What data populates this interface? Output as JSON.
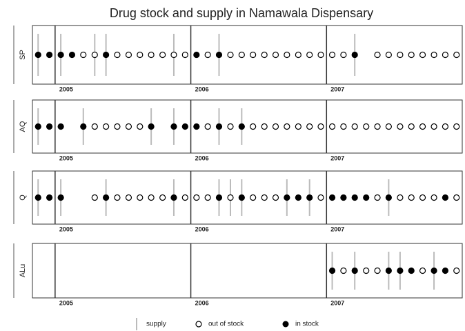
{
  "chart_data": {
    "type": "dot",
    "title": "Drug stock and supply in Namawala Dispensary",
    "xlim": [
      2004.833,
      2008
    ],
    "xticks": [
      2005,
      2006,
      2007
    ],
    "x": [
      2004.875,
      2004.958,
      2005.042,
      2005.125,
      2005.208,
      2005.292,
      2005.375,
      2005.458,
      2005.542,
      2005.625,
      2005.708,
      2005.792,
      2005.875,
      2005.958,
      2006.042,
      2006.125,
      2006.208,
      2006.292,
      2006.375,
      2006.458,
      2006.542,
      2006.625,
      2006.708,
      2006.792,
      2006.875,
      2006.958,
      2007.042,
      2007.125,
      2007.208,
      2007.292,
      2007.375,
      2007.458,
      2007.542,
      2007.625,
      2007.708,
      2007.792,
      2007.875,
      2007.958
    ],
    "legend": [
      "supply",
      "out of stock",
      "in stock"
    ],
    "series": [
      {
        "name": "SP",
        "values": [
          1,
          1,
          1,
          1,
          0,
          0,
          1,
          0,
          0,
          0,
          0,
          0,
          0,
          0,
          1,
          0,
          1,
          0,
          0,
          0,
          0,
          0,
          0,
          0,
          0,
          0,
          0,
          0,
          1,
          null,
          0,
          0,
          0,
          0,
          0,
          0,
          0,
          0
        ],
        "supply": [
          2004.875,
          2005.042,
          2005.292,
          2005.375,
          2005.875,
          2006.208,
          2007.208
        ]
      },
      {
        "name": "AQ",
        "values": [
          1,
          1,
          1,
          null,
          1,
          0,
          0,
          0,
          0,
          0,
          1,
          null,
          1,
          1,
          1,
          0,
          1,
          0,
          1,
          0,
          0,
          0,
          0,
          0,
          0,
          0,
          0,
          0,
          0,
          0,
          0,
          0,
          0,
          0,
          0,
          0,
          0,
          0
        ],
        "supply": [
          2004.875,
          2005.208,
          2005.708,
          2005.875,
          2006.208,
          2006.375
        ]
      },
      {
        "name": "Q",
        "values": [
          1,
          1,
          1,
          null,
          null,
          0,
          1,
          0,
          0,
          0,
          0,
          0,
          1,
          0,
          0,
          0,
          1,
          0,
          1,
          0,
          0,
          0,
          1,
          1,
          1,
          0,
          1,
          1,
          1,
          1,
          0,
          1,
          0,
          0,
          0,
          0,
          1,
          0
        ],
        "supply": [
          2004.875,
          2005.042,
          2005.375,
          2005.875,
          2006.208,
          2006.292,
          2006.375,
          2006.708,
          2006.875,
          2007.458
        ]
      },
      {
        "name": "ALu",
        "values": [
          null,
          null,
          null,
          null,
          null,
          null,
          null,
          null,
          null,
          null,
          null,
          null,
          null,
          null,
          null,
          null,
          null,
          null,
          null,
          null,
          null,
          null,
          null,
          null,
          null,
          null,
          1,
          0,
          1,
          0,
          0,
          1,
          1,
          1,
          0,
          1,
          1,
          0
        ],
        "supply": [
          2007.042,
          2007.208,
          2007.458,
          2007.542,
          2007.792
        ]
      }
    ]
  }
}
